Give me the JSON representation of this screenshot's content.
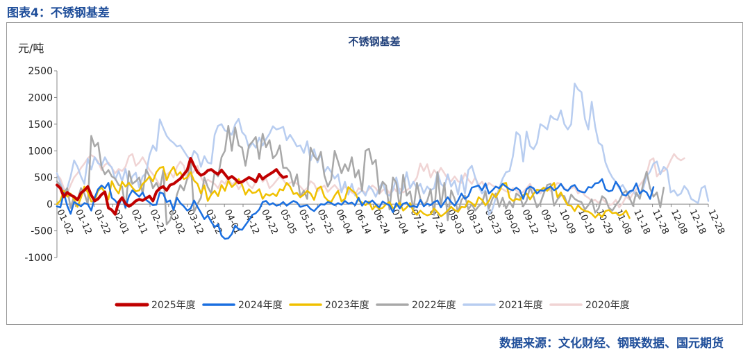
{
  "figure_caption": "图表4：不锈钢基差",
  "source_note": "数据来源：文化财经、钢联数据、国元期货",
  "chart_data": {
    "type": "line",
    "title": "不锈钢基差",
    "ylabel": "元/吨",
    "xlabel": "",
    "ylim": [
      -1000,
      2500
    ],
    "yticks": [
      -1000,
      -500,
      0,
      500,
      1000,
      1500,
      2000,
      2500
    ],
    "x_tick_labels": [
      "01-02",
      "01-12",
      "01-22",
      "02-01",
      "02-11",
      "02-21",
      "03-02",
      "03-12",
      "03-22",
      "04-01",
      "04-12",
      "04-22",
      "05-05",
      "05-15",
      "05-25",
      "06-04",
      "06-14",
      "06-24",
      "07-04",
      "07-14",
      "07-24",
      "08-03",
      "08-13",
      "08-23",
      "09-02",
      "09-12",
      "09-22",
      "10-09",
      "10-19",
      "10-29",
      "11-08",
      "11-18",
      "11-28",
      "12-08",
      "12-18",
      "12-28"
    ],
    "grid": false,
    "legend_position": "bottom",
    "series": [
      {
        "name": "2025年度",
        "color": "#c00000",
        "width": 4,
        "values": [
          360,
          300,
          140,
          220,
          170,
          140,
          80,
          210,
          260,
          330,
          170,
          60,
          100,
          180,
          230,
          -70,
          -110,
          -190,
          40,
          120,
          10,
          -40,
          0,
          60,
          90,
          70,
          110,
          150,
          60,
          230,
          300,
          330,
          260,
          360,
          380,
          430,
          480,
          560,
          640,
          860,
          720,
          600,
          540,
          570,
          630,
          650,
          600,
          560,
          640,
          560,
          480,
          520,
          470,
          400,
          420,
          460,
          500,
          470,
          420,
          560,
          470,
          520,
          560,
          600,
          650,
          560,
          500,
          520
        ]
      },
      {
        "name": "2024年度",
        "color": "#1a6fe0",
        "width": 2.5,
        "values": [
          -40,
          -60,
          210,
          -30,
          -180,
          40,
          0,
          -40,
          20,
          0,
          -120,
          120,
          280,
          350,
          300,
          400,
          120,
          70,
          -20,
          120,
          -60,
          150,
          260,
          200,
          140,
          220,
          80,
          30,
          -20,
          -10,
          220,
          200,
          40,
          70,
          -110,
          120,
          20,
          -40,
          -120,
          -80,
          70,
          -50,
          -160,
          -280,
          -210,
          -330,
          -430,
          -380,
          -590,
          -650,
          -640,
          -560,
          -400,
          -470,
          -480,
          -390,
          -300,
          -200,
          -170,
          -100,
          40,
          60,
          -10,
          20,
          -30,
          -10,
          40,
          -30,
          20,
          60,
          30,
          -50,
          -30,
          -20,
          -90,
          -130,
          -60,
          0,
          -10,
          40,
          20,
          -20,
          20,
          -10,
          60,
          10,
          30,
          -20,
          120,
          -30,
          60,
          20,
          70,
          0,
          -60,
          50,
          10,
          -20,
          -150,
          20,
          -80,
          10,
          30,
          -50,
          -30,
          -60,
          80,
          -40,
          10,
          -20,
          40,
          70,
          -60,
          40,
          130,
          40,
          -30,
          70,
          200,
          100,
          150,
          310,
          330,
          350,
          260,
          390,
          200,
          260,
          330,
          300,
          380,
          330,
          280,
          260,
          310,
          260,
          100,
          280,
          330,
          300,
          200,
          260,
          250,
          300,
          330,
          260,
          300,
          380,
          280,
          250,
          330,
          360,
          260,
          230,
          220,
          320,
          310,
          390,
          400,
          470,
          280,
          240,
          260,
          420,
          330,
          180,
          160,
          240,
          260,
          390,
          200,
          260,
          220,
          100,
          320
        ]
      },
      {
        "name": "2023年度",
        "color": "#f0c000",
        "width": 2.5,
        "values": [
          0,
          70,
          250,
          140,
          200,
          90,
          -50,
          120,
          330,
          220,
          50,
          60,
          250,
          310,
          220,
          90,
          430,
          290,
          200,
          420,
          330,
          400,
          310,
          240,
          260,
          380,
          440,
          520,
          430,
          600,
          680,
          700,
          450,
          600,
          700,
          540,
          600,
          470,
          500,
          600,
          440,
          380,
          200,
          350,
          60,
          180,
          250,
          150,
          360,
          250,
          440,
          320,
          380,
          470,
          360,
          180,
          280,
          210,
          220,
          280,
          100,
          190,
          160,
          200,
          150,
          280,
          260,
          400,
          330,
          190,
          210,
          130,
          180,
          250,
          200,
          80,
          290,
          330,
          140,
          70,
          40,
          160,
          250,
          50,
          100,
          320,
          260,
          210,
          70,
          30,
          -20,
          50,
          -100,
          -30,
          -90,
          -70,
          0,
          40,
          -80,
          -40,
          30,
          -120,
          -60,
          20,
          -140,
          -200,
          -120,
          -180,
          -210,
          -190,
          -80,
          -150,
          -230,
          -180,
          -120,
          -50,
          -110,
          -140,
          -50,
          -60,
          60,
          20,
          -40,
          130,
          80,
          -20,
          60,
          200,
          130,
          240,
          380,
          400,
          120,
          60,
          100,
          80,
          170,
          200,
          90,
          190,
          270,
          260,
          310,
          250,
          320,
          400,
          130,
          220,
          90,
          -20,
          -30,
          -130,
          -20,
          -90,
          -130,
          -140,
          -180,
          -250,
          -180,
          -240,
          -130,
          -110,
          -170,
          -160,
          -210,
          -190,
          -120,
          -260
        ]
      },
      {
        "name": "2022年度",
        "color": "#a8a8a8",
        "width": 2.5,
        "values": [
          430,
          350,
          200,
          300,
          -70,
          150,
          80,
          300,
          200,
          0,
          1280,
          1080,
          1150,
          700,
          560,
          640,
          520,
          480,
          360,
          330,
          -80,
          620,
          380,
          430,
          500,
          200,
          650,
          520,
          300,
          400,
          260,
          630,
          -380,
          -300,
          -100,
          180,
          360,
          260,
          480,
          800,
          -150,
          0,
          120,
          500,
          320,
          200,
          600,
          520,
          880,
          1000,
          1470,
          1000,
          1440,
          1100,
          1060,
          720,
          1100,
          1170,
          1260,
          850,
          1320,
          1070,
          1200,
          860,
          930,
          1100,
          680,
          680,
          600,
          340,
          560,
          140,
          250,
          100,
          1060,
          900,
          820,
          980,
          540,
          330,
          460,
          1000,
          800,
          580,
          750,
          620,
          880,
          500,
          640,
          250,
          1000,
          1040,
          750,
          830,
          200,
          420,
          350,
          -100,
          500,
          400,
          -80,
          550,
          160,
          240,
          -100,
          400,
          100,
          -20,
          60,
          280,
          -200,
          600,
          -50,
          400,
          -300,
          260,
          100,
          -150,
          80,
          160,
          -100,
          0,
          -120,
          -40,
          20,
          240,
          -80,
          100,
          200,
          -50,
          120,
          -80,
          50,
          -60,
          200,
          150,
          -40,
          60,
          320,
          150,
          -60,
          20,
          200,
          360,
          380,
          -30,
          90,
          170,
          150,
          -20,
          180,
          100,
          60,
          40,
          -100,
          -20,
          90,
          -160,
          -80,
          150,
          100,
          -70,
          -120,
          -20,
          60,
          200,
          250,
          120,
          -30,
          220,
          100,
          380,
          610,
          300,
          140,
          220,
          -60,
          310
        ]
      },
      {
        "name": "2021年度",
        "color": "#b8cdf0",
        "width": 2.5,
        "values": [
          580,
          400,
          230,
          300,
          520,
          820,
          700,
          520,
          380,
          850,
          650,
          880,
          770,
          720,
          880,
          750,
          690,
          460,
          620,
          430,
          660,
          350,
          520,
          590,
          310,
          520,
          580,
          920,
          1100,
          1000,
          1590,
          1430,
          1280,
          1200,
          1150,
          1080,
          1100,
          1000,
          900,
          820,
          1000,
          930,
          700,
          900,
          780,
          760,
          1300,
          1470,
          1500,
          1380,
          1360,
          1300,
          1500,
          1600,
          1350,
          1280,
          1050,
          1150,
          1060,
          1250,
          1100,
          1220,
          1320,
          1460,
          1400,
          1420,
          1450,
          1200,
          1300,
          1200,
          1080,
          1100,
          960,
          1180,
          820,
          1030,
          780,
          940,
          600,
          700,
          600,
          480,
          560,
          220,
          420,
          180,
          380,
          160,
          200,
          260,
          160,
          340,
          270,
          140,
          300,
          420,
          200,
          160,
          260,
          500,
          200,
          280,
          600,
          300,
          420,
          300,
          380,
          200,
          330,
          260,
          300,
          600,
          380,
          320,
          560,
          330,
          440,
          180,
          540,
          200,
          640,
          720,
          500,
          330,
          200,
          260,
          -200,
          -100,
          120,
          300,
          480,
          600,
          620,
          900,
          1350,
          1290,
          800,
          1360,
          1090,
          1030,
          1150,
          1500,
          1460,
          1400,
          1660,
          1600,
          1580,
          1760,
          1500,
          1400,
          1500,
          2260,
          2150,
          2100,
          1600,
          1400,
          1920,
          1450,
          1150,
          1100,
          780,
          620,
          500,
          420,
          300,
          360,
          250,
          200,
          260,
          150,
          180,
          300,
          520,
          610,
          760,
          800,
          560,
          700,
          640,
          220,
          260,
          160,
          200,
          340,
          260,
          100,
          60,
          20,
          300,
          340,
          60
        ]
      },
      {
        "name": "2020年度",
        "color": "#f0d4d4",
        "width": 2.5,
        "values": [
          550,
          480,
          300,
          200,
          360,
          500,
          580,
          680,
          760,
          860,
          920,
          880,
          800,
          640,
          740,
          780,
          680,
          580,
          660,
          620,
          700,
          900,
          940,
          720,
          780,
          880,
          760,
          640,
          560,
          460,
          350,
          300,
          560,
          600,
          500,
          700,
          800,
          720,
          460,
          540,
          620,
          720,
          510,
          380,
          460,
          420,
          380,
          300,
          440,
          380,
          500,
          360,
          420,
          280,
          380,
          460,
          350,
          300,
          420,
          560,
          420,
          480,
          300,
          360,
          440,
          520,
          460,
          360,
          400,
          430,
          380,
          330,
          250,
          300,
          430,
          380,
          240,
          300,
          350,
          230,
          300,
          360,
          280,
          250,
          330,
          270,
          220,
          180,
          300,
          260,
          210,
          280,
          350,
          300,
          190,
          260,
          300,
          200,
          330,
          240,
          290,
          220,
          260,
          310,
          400,
          500,
          760,
          620,
          750,
          500,
          640,
          560,
          680,
          580,
          470,
          430,
          520,
          430,
          400,
          580,
          460,
          380,
          500,
          360,
          420,
          300,
          400,
          350,
          320,
          300,
          280,
          240,
          220,
          300,
          260,
          200,
          230,
          300,
          380,
          260,
          220,
          200,
          280,
          300,
          250,
          320,
          400,
          380,
          300,
          260,
          300,
          320,
          200,
          250,
          160,
          120,
          60,
          80,
          20,
          100,
          40,
          -20,
          0,
          80,
          -60,
          20,
          140,
          90,
          200,
          280,
          360,
          440,
          560,
          820,
          860,
          520,
          600,
          620,
          680,
          820,
          940,
          860,
          820,
          860
        ]
      }
    ]
  }
}
